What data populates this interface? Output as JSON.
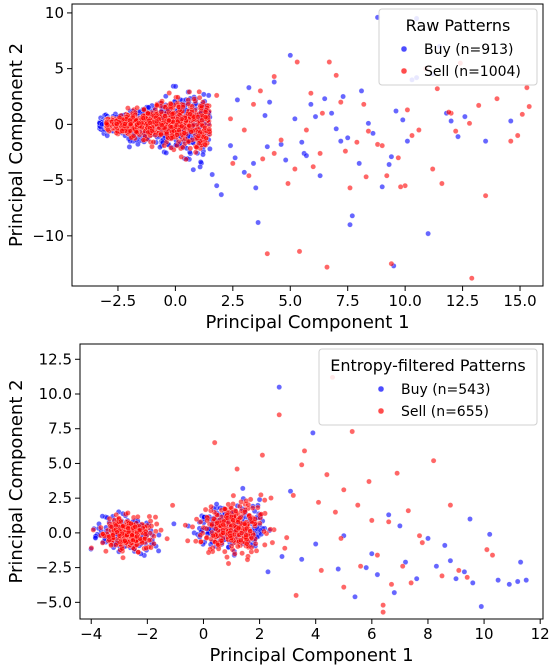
{
  "chart_data": [
    {
      "type": "scatter",
      "title": "",
      "xlabel": "Principal Component 1",
      "ylabel": "Principal Component 2",
      "xlim": [
        -4.5,
        16.0
      ],
      "ylim": [
        -14.5,
        10.8
      ],
      "xticks": [
        -2.5,
        0.0,
        2.5,
        5.0,
        7.5,
        10.0,
        12.5,
        15.0
      ],
      "xtick_labels": [
        "−2.5",
        "0.0",
        "2.5",
        "5.0",
        "7.5",
        "10.0",
        "12.5",
        "15.0"
      ],
      "yticks": [
        10,
        5,
        0,
        -5,
        -10
      ],
      "ytick_labels": [
        "10",
        "5",
        "0",
        "−5",
        "−10"
      ],
      "legend": {
        "title": "Raw Patterns",
        "position": "top-right"
      },
      "series": [
        {
          "name": "Buy (n=913)",
          "color": "#0000ff",
          "count": 913,
          "cluster": {
            "xmin": -3.3,
            "xmax": 1.5,
            "ymin": -2.5,
            "ymax": 2.5
          },
          "points": [
            [
              1.0,
              -1.4
            ],
            [
              1.2,
              -2.7
            ],
            [
              1.5,
              -2.2
            ],
            [
              1.8,
              -5.5
            ],
            [
              2.0,
              -6.3
            ],
            [
              1.6,
              -4.5
            ],
            [
              2.6,
              -3.0
            ],
            [
              3.0,
              -4.3
            ],
            [
              3.4,
              -3.5
            ],
            [
              3.5,
              -5.7
            ],
            [
              3.6,
              -8.8
            ],
            [
              4.0,
              -2.0
            ],
            [
              4.6,
              -1.8
            ],
            [
              4.1,
              2.0
            ],
            [
              4.3,
              3.8
            ],
            [
              5.2,
              0.5
            ],
            [
              5.5,
              -1.6
            ],
            [
              5.6,
              -2.6
            ],
            [
              5.7,
              -2.8
            ],
            [
              6.1,
              0.7
            ],
            [
              6.5,
              2.3
            ],
            [
              6.8,
              1.0
            ],
            [
              7.0,
              -0.4
            ],
            [
              7.2,
              -1.5
            ],
            [
              7.5,
              -1.2
            ],
            [
              7.7,
              -8.2
            ],
            [
              7.6,
              -9.0
            ],
            [
              8.0,
              -3.5
            ],
            [
              8.1,
              3.0
            ],
            [
              8.4,
              0.1
            ],
            [
              9.0,
              -5.6
            ],
            [
              9.3,
              -3.6
            ],
            [
              9.4,
              -2.9
            ],
            [
              9.6,
              1.2
            ],
            [
              10.1,
              -1.5
            ],
            [
              10.3,
              4.0
            ],
            [
              10.5,
              4.2
            ],
            [
              11.0,
              -9.8
            ],
            [
              11.2,
              4.5
            ],
            [
              11.5,
              7.0
            ],
            [
              11.8,
              1.0
            ],
            [
              12.0,
              0.3
            ],
            [
              12.6,
              0.7
            ],
            [
              13.5,
              -1.5
            ],
            [
              9.5,
              -12.7
            ],
            [
              5.0,
              6.2
            ],
            [
              3.2,
              3.3
            ],
            [
              2.4,
              -1.9
            ],
            [
              4.8,
              -3.2
            ],
            [
              6.3,
              -4.6
            ],
            [
              8.8,
              9.6
            ],
            [
              10.5,
              9.5
            ],
            [
              14.6,
              0.3
            ],
            [
              2.7,
              2.2
            ],
            [
              3.9,
              0.8
            ],
            [
              5.9,
              1.8
            ],
            [
              7.3,
              2.5
            ],
            [
              8.6,
              -0.8
            ],
            [
              9.9,
              0.4
            ],
            [
              12.3,
              -1.1
            ]
          ]
        },
        {
          "name": "Sell (n=1004)",
          "color": "#ff0000",
          "count": 1004,
          "cluster": {
            "xmin": -3.0,
            "xmax": 1.5,
            "ymin": -2.2,
            "ymax": 2.2
          },
          "points": [
            [
              1.2,
              2.0
            ],
            [
              1.8,
              2.6
            ],
            [
              2.4,
              0.5
            ],
            [
              3.0,
              -0.5
            ],
            [
              3.4,
              1.8
            ],
            [
              3.7,
              3.0
            ],
            [
              4.3,
              4.3
            ],
            [
              4.0,
              -11.6
            ],
            [
              4.6,
              -1.4
            ],
            [
              4.9,
              -5.3
            ],
            [
              5.2,
              -4.0
            ],
            [
              5.4,
              -11.4
            ],
            [
              5.7,
              -0.5
            ],
            [
              5.9,
              2.8
            ],
            [
              6.3,
              -2.6
            ],
            [
              6.4,
              1.0
            ],
            [
              6.6,
              -12.8
            ],
            [
              6.7,
              5.6
            ],
            [
              7.0,
              4.4
            ],
            [
              7.4,
              -2.4
            ],
            [
              7.6,
              -5.7
            ],
            [
              7.9,
              -1.6
            ],
            [
              8.2,
              1.8
            ],
            [
              8.4,
              -0.6
            ],
            [
              8.8,
              -1.8
            ],
            [
              9.2,
              -4.6
            ],
            [
              9.4,
              -12.5
            ],
            [
              9.7,
              -3.0
            ],
            [
              10.0,
              -5.5
            ],
            [
              10.3,
              -1.0
            ],
            [
              10.6,
              -0.5
            ],
            [
              10.9,
              5.0
            ],
            [
              11.2,
              -4.0
            ],
            [
              11.4,
              3.2
            ],
            [
              11.6,
              -5.3
            ],
            [
              12.0,
              1.0
            ],
            [
              12.4,
              5.5
            ],
            [
              12.9,
              -13.8
            ],
            [
              12.8,
              0.1
            ],
            [
              13.5,
              -6.4
            ],
            [
              14.0,
              2.3
            ],
            [
              14.6,
              -1.5
            ],
            [
              15.1,
              0.9
            ],
            [
              15.3,
              3.3
            ],
            [
              15.4,
              1.6
            ],
            [
              14.9,
              -1.0
            ],
            [
              13.2,
              1.7
            ],
            [
              9.0,
              -1.9
            ],
            [
              8.3,
              -4.7
            ],
            [
              4.3,
              -2.6
            ],
            [
              3.2,
              -4.6
            ],
            [
              2.5,
              -3.5
            ],
            [
              9.8,
              -5.6
            ],
            [
              11.9,
              1.1
            ],
            [
              5.3,
              5.6
            ],
            [
              7.2,
              2.0
            ],
            [
              6.0,
              -3.8
            ],
            [
              10.1,
              1.3
            ],
            [
              3.8,
              -3.1
            ],
            [
              12.2,
              -0.6
            ]
          ]
        }
      ]
    },
    {
      "type": "scatter",
      "title": "",
      "xlabel": "Principal Component 1",
      "ylabel": "Principal Component 2",
      "xlim": [
        -4.4,
        12.1
      ],
      "ylim": [
        -6.2,
        13.6
      ],
      "xticks": [
        -4,
        -2,
        0,
        2,
        4,
        6,
        8,
        10,
        12
      ],
      "xtick_labels": [
        "−4",
        "−2",
        "0",
        "2",
        "4",
        "6",
        "8",
        "10",
        "12"
      ],
      "yticks": [
        12.5,
        10.0,
        7.5,
        5.0,
        2.5,
        0.0,
        -2.5,
        -5.0
      ],
      "ytick_labels": [
        "12.5",
        "10.0",
        "7.5",
        "5.0",
        "2.5",
        "0.0",
        "−2.5",
        "−5.0"
      ],
      "legend": {
        "title": "Entropy-filtered Patterns",
        "position": "top-right"
      },
      "series": [
        {
          "name": "Buy (n=543)",
          "color": "#0000ff",
          "count": 543,
          "clusters": [
            {
              "xmin": -3.8,
              "xmax": -1.8,
              "ymin": -1.4,
              "ymax": 1.1
            },
            {
              "xmin": -0.2,
              "xmax": 2.2,
              "ymin": -1.3,
              "ymax": 2.0
            }
          ],
          "points": [
            [
              -3.9,
              0.3
            ],
            [
              -3.6,
              1.2
            ],
            [
              -1.6,
              -1.3
            ],
            [
              0.6,
              1.8
            ],
            [
              1.1,
              -1.6
            ],
            [
              2.3,
              -2.8
            ],
            [
              2.7,
              10.5
            ],
            [
              3.1,
              3.0
            ],
            [
              3.5,
              -1.9
            ],
            [
              4.0,
              -0.8
            ],
            [
              4.8,
              -2.6
            ],
            [
              5.0,
              -0.2
            ],
            [
              5.4,
              -4.6
            ],
            [
              5.8,
              -2.5
            ],
            [
              6.2,
              -3.0
            ],
            [
              6.6,
              1.3
            ],
            [
              6.8,
              -4.3
            ],
            [
              7.2,
              -2.1
            ],
            [
              7.6,
              -3.3
            ],
            [
              8.0,
              -0.4
            ],
            [
              8.3,
              -2.4
            ],
            [
              8.6,
              -0.9
            ],
            [
              9.0,
              -3.3
            ],
            [
              9.3,
              -2.8
            ],
            [
              9.6,
              -3.6
            ],
            [
              9.9,
              -5.3
            ],
            [
              10.2,
              -0.1
            ],
            [
              10.5,
              -3.4
            ],
            [
              10.9,
              -3.7
            ],
            [
              11.2,
              -3.5
            ],
            [
              11.3,
              -2.1
            ],
            [
              11.5,
              -3.4
            ],
            [
              1.4,
              3.2
            ],
            [
              3.9,
              7.2
            ],
            [
              2.0,
              2.4
            ],
            [
              2.8,
              -1.7
            ],
            [
              6.0,
              -1.5
            ],
            [
              7.0,
              0.5
            ],
            [
              8.8,
              -2.0
            ],
            [
              9.5,
              1.0
            ]
          ]
        },
        {
          "name": "Sell (n=655)",
          "color": "#ff0000",
          "count": 655,
          "clusters": [
            {
              "xmin": -3.6,
              "xmax": -1.8,
              "ymin": -1.3,
              "ymax": 1.1
            },
            {
              "xmin": -0.3,
              "xmax": 2.4,
              "ymin": -1.5,
              "ymax": 2.2
            }
          ],
          "points": [
            [
              0.4,
              6.5
            ],
            [
              1.2,
              4.6
            ],
            [
              2.1,
              5.6
            ],
            [
              2.7,
              8.5
            ],
            [
              3.3,
              -4.5
            ],
            [
              3.5,
              4.9
            ],
            [
              3.6,
              5.9
            ],
            [
              4.1,
              2.2
            ],
            [
              4.4,
              4.2
            ],
            [
              4.7,
              1.5
            ],
            [
              5.0,
              -3.9
            ],
            [
              5.3,
              7.3
            ],
            [
              5.5,
              2.0
            ],
            [
              5.6,
              -2.4
            ],
            [
              5.9,
              3.7
            ],
            [
              6.2,
              -1.6
            ],
            [
              6.4,
              -5.2
            ],
            [
              6.4,
              -5.7
            ],
            [
              6.6,
              0.8
            ],
            [
              6.9,
              4.3
            ],
            [
              7.1,
              -2.4
            ],
            [
              7.4,
              -3.6
            ],
            [
              7.8,
              -0.7
            ],
            [
              8.2,
              5.2
            ],
            [
              8.5,
              -3.1
            ],
            [
              8.8,
              2.0
            ],
            [
              9.1,
              -2.7
            ],
            [
              9.4,
              -3.2
            ],
            [
              10.1,
              -1.2
            ],
            [
              10.3,
              -1.6
            ],
            [
              4.6,
              11.2
            ],
            [
              5.0,
              3.1
            ],
            [
              2.9,
              -1.1
            ],
            [
              3.2,
              2.7
            ],
            [
              4.9,
              -0.4
            ],
            [
              6.0,
              0.9
            ],
            [
              7.3,
              1.6
            ],
            [
              7.7,
              -0.2
            ],
            [
              4.2,
              -2.7
            ],
            [
              6.7,
              -3.7
            ]
          ]
        }
      ]
    }
  ]
}
